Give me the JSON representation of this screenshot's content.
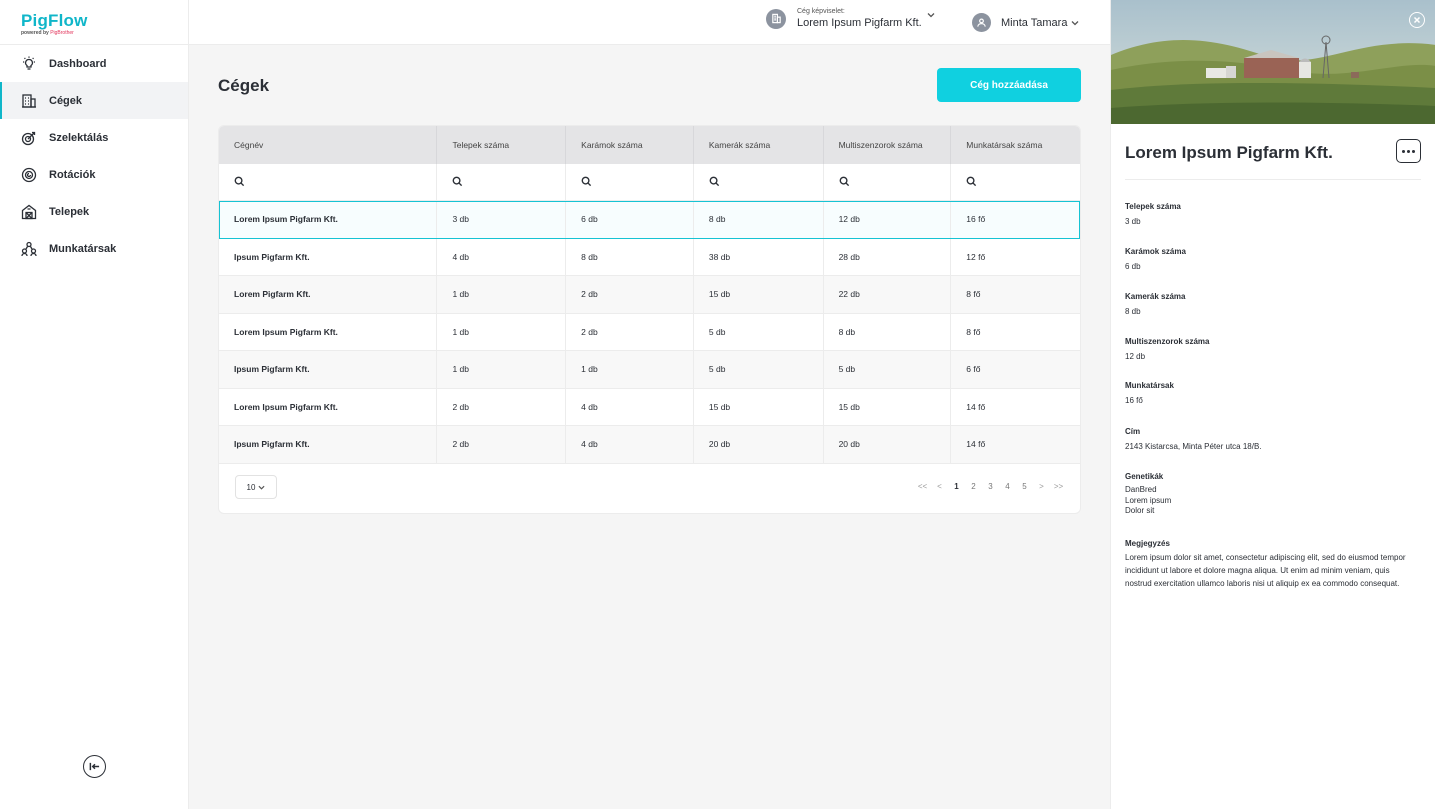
{
  "brand": {
    "name": "PigFlow",
    "tagline_prefix": "powered by",
    "tagline_brand": "PigBrother"
  },
  "sidebar": {
    "items": [
      {
        "label": "Dashboard",
        "icon": "lightbulb-icon"
      },
      {
        "label": "Cégek",
        "icon": "building-icon",
        "active": true
      },
      {
        "label": "Szelektálás",
        "icon": "target-icon"
      },
      {
        "label": "Rotációk",
        "icon": "rotation-icon"
      },
      {
        "label": "Telepek",
        "icon": "barn-icon"
      },
      {
        "label": "Munkatársak",
        "icon": "people-icon"
      }
    ]
  },
  "header": {
    "company_label": "Cég képviselet:",
    "company_value": "Lorem Ipsum Pigfarm Kft.",
    "user_name": "Minta Tamara"
  },
  "main": {
    "title": "Cégek",
    "add_button": "Cég hozzáadása"
  },
  "table": {
    "columns": [
      "Cégnév",
      "Telepek száma",
      "Karámok száma",
      "Kamerák száma",
      "Multiszenzorok száma",
      "Munkatársak száma"
    ],
    "rows": [
      [
        "Lorem Ipsum Pigfarm Kft.",
        "3 db",
        "6 db",
        "8 db",
        "12 db",
        "16 fő"
      ],
      [
        "Ipsum Pigfarm Kft.",
        "4 db",
        "8 db",
        "38 db",
        "28 db",
        "12 fő"
      ],
      [
        "Lorem Pigfarm Kft.",
        "1 db",
        "2 db",
        "15 db",
        "22 db",
        "8 fő"
      ],
      [
        "Lorem Ipsum Pigfarm Kft.",
        "1 db",
        "2 db",
        "5 db",
        "8 db",
        "8 fő"
      ],
      [
        "Ipsum Pigfarm Kft.",
        "1 db",
        "1 db",
        "5 db",
        "5 db",
        "6 fő"
      ],
      [
        "Lorem Ipsum Pigfarm Kft.",
        "2 db",
        "4 db",
        "15 db",
        "15 db",
        "14 fő"
      ],
      [
        "Ipsum Pigfarm Kft.",
        "2 db",
        "4 db",
        "20 db",
        "20 db",
        "14 fő"
      ]
    ],
    "page_size": "10",
    "pagination": {
      "first": "<<",
      "prev": "<",
      "pages": [
        "1",
        "2",
        "3",
        "4",
        "5"
      ],
      "current": "1",
      "next": ">",
      "last": ">>"
    }
  },
  "panel": {
    "title": "Lorem Ipsum Pigfarm Kft.",
    "fields": {
      "telepek": {
        "label": "Telepek száma",
        "value": "3 db"
      },
      "karamok": {
        "label": "Karámok száma",
        "value": "6 db"
      },
      "kamerak": {
        "label": "Kamerák száma",
        "value": "8 db"
      },
      "multi": {
        "label": "Multiszenzorok száma",
        "value": "12 db"
      },
      "munkatarsak": {
        "label": "Munkatársak",
        "value": "16 fő"
      },
      "cim": {
        "label": "Cím",
        "value": "2143 Kistarcsa, Minta Péter utca 18/B."
      },
      "genetikak": {
        "label": "Genetikák",
        "values": [
          "DanBred",
          "Lorem ipsum",
          "Dolor sit"
        ]
      },
      "megjegyzes": {
        "label": "Megjegyzés",
        "value": "Lorem ipsum dolor sit amet, consectetur adipiscing elit, sed do eiusmod tempor incididunt ut labore et dolore magna aliqua. Ut enim ad minim veniam, quis nostrud exercitation ullamco laboris nisi ut aliquip ex ea commodo consequat."
      }
    }
  },
  "colors": {
    "accent": "#10d0e0",
    "brand": "#10b6c9",
    "brand_secondary": "#e2335a",
    "text": "#2b2f36"
  }
}
